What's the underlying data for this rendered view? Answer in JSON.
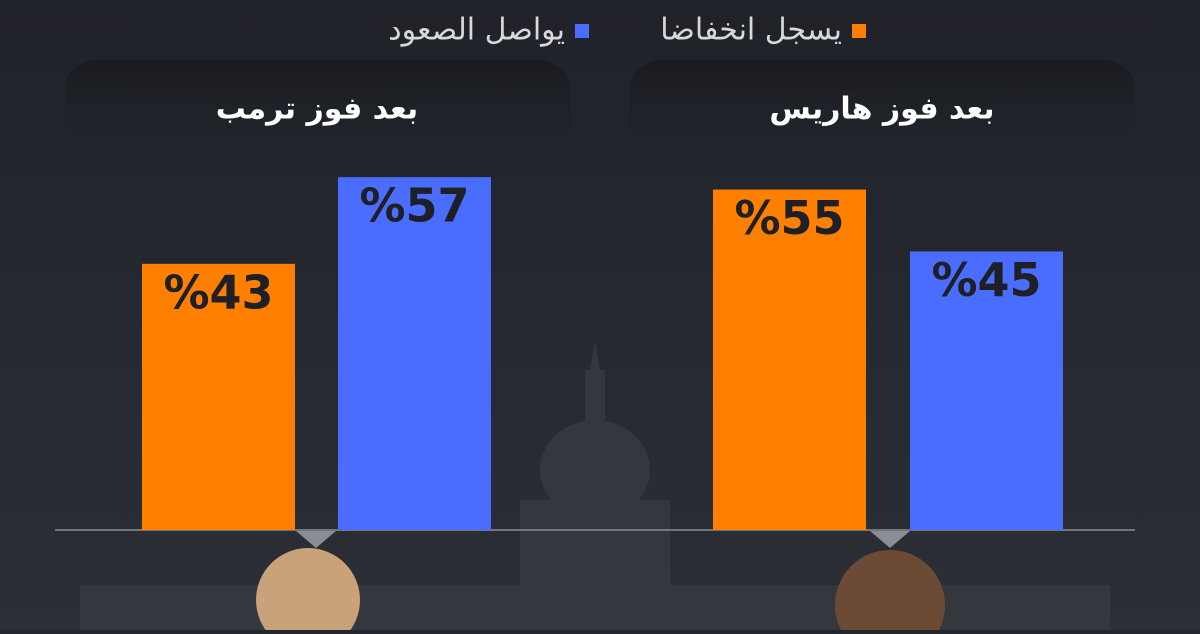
{
  "legend": [
    {
      "name": "يسجل انخفاضا",
      "color": "#ff7f00"
    },
    {
      "name": "يواصل الصعود",
      "color": "#4a6cff"
    }
  ],
  "chart_data": [
    {
      "type": "bar",
      "title": "بعد فوز ترمب",
      "values": [
        43,
        57
      ],
      "value_labels": [
        "%43",
        "%57"
      ],
      "colors": [
        "#ff7f00",
        "#4a6cff"
      ]
    },
    {
      "type": "bar",
      "title": "بعد فوز هاريس",
      "values": [
        55,
        45
      ],
      "value_labels": [
        "%55",
        "%45"
      ],
      "colors": [
        "#ff7f00",
        "#4a6cff"
      ]
    }
  ]
}
